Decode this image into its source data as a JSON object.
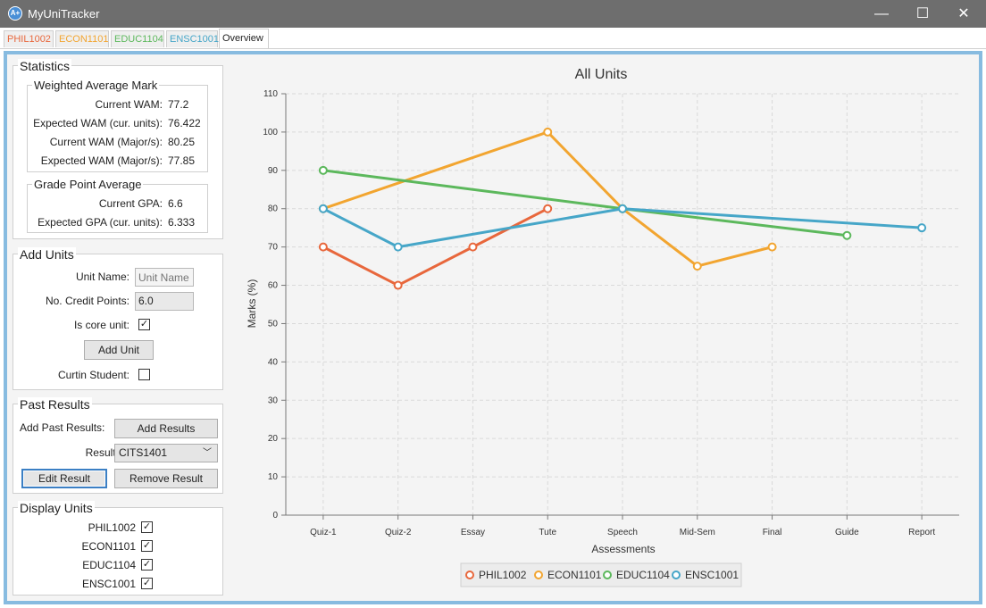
{
  "window": {
    "title": "MyUniTracker",
    "icon": "app-icon",
    "minimize": "—",
    "maximize": "☐",
    "close": "✕"
  },
  "tabs": [
    {
      "label": "PHIL1002",
      "color": "#e8673c"
    },
    {
      "label": "ECON1101",
      "color": "#f2a530"
    },
    {
      "label": "EDUC1104",
      "color": "#5cb85c"
    },
    {
      "label": "ENSC1001",
      "color": "#46a6c8"
    },
    {
      "label": "Overview",
      "color": "#222222"
    }
  ],
  "statistics": {
    "title": "Statistics",
    "wam": {
      "title": "Weighted Average Mark",
      "rows": [
        {
          "label": "Current WAM:",
          "value": "77.2"
        },
        {
          "label": "Expected WAM (cur. units):",
          "value": "76.422"
        },
        {
          "label": "Current WAM (Major/s):",
          "value": "80.25"
        },
        {
          "label": "Expected WAM (Major/s):",
          "value": "77.85"
        }
      ]
    },
    "gpa": {
      "title": "Grade Point Average",
      "rows": [
        {
          "label": "Current GPA:",
          "value": "6.6"
        },
        {
          "label": "Expected GPA (cur. units):",
          "value": "6.333"
        }
      ]
    }
  },
  "add_units": {
    "title": "Add Units",
    "unit_name_label": "Unit Name:",
    "unit_name_placeholder": "Unit Name",
    "credit_label": "No. Credit Points:",
    "credit_value": "6.0",
    "core_label": "Is core unit:",
    "core_checked": "✓",
    "add_button": "Add Unit",
    "curtin_label": "Curtin Student:",
    "curtin_checked": ""
  },
  "past_results": {
    "title": "Past Results",
    "add_label": "Add Past Results:",
    "add_button": "Add Results",
    "result_label": "Result:",
    "result_value": "CITS1401",
    "edit_button": "Edit Result",
    "remove_button": "Remove Result"
  },
  "display_units": {
    "title": "Display Units",
    "items": [
      {
        "label": "PHIL1002",
        "checked": "✓"
      },
      {
        "label": "ECON1101",
        "checked": "✓"
      },
      {
        "label": "EDUC1104",
        "checked": "✓"
      },
      {
        "label": "ENSC1001",
        "checked": "✓"
      }
    ]
  },
  "chart_data": {
    "type": "line",
    "title": "All Units",
    "xlabel": "Assessments",
    "ylabel": "Marks (%)",
    "categories": [
      "Quiz-1",
      "Quiz-2",
      "Essay",
      "Tute",
      "Speech",
      "Mid-Sem",
      "Final",
      "Guide",
      "Report"
    ],
    "ylim": [
      0,
      110
    ],
    "yticks": [
      0,
      10,
      20,
      30,
      40,
      50,
      60,
      70,
      80,
      90,
      100,
      110
    ],
    "grid": true,
    "legend": "bottom",
    "series": [
      {
        "name": "PHIL1002",
        "color": "#e8673c",
        "points": [
          [
            "Quiz-1",
            70
          ],
          [
            "Quiz-2",
            60
          ],
          [
            "Essay",
            70
          ],
          [
            "Tute",
            80
          ]
        ]
      },
      {
        "name": "ECON1101",
        "color": "#f2a530",
        "points": [
          [
            "Quiz-1",
            80
          ],
          [
            "Tute",
            100
          ],
          [
            "Speech",
            80
          ],
          [
            "Mid-Sem",
            65
          ],
          [
            "Final",
            70
          ]
        ]
      },
      {
        "name": "EDUC1104",
        "color": "#5cb85c",
        "points": [
          [
            "Quiz-1",
            90
          ],
          [
            "Speech",
            80
          ],
          [
            "Guide",
            73
          ]
        ]
      },
      {
        "name": "ENSC1001",
        "color": "#46a6c8",
        "points": [
          [
            "Quiz-1",
            80
          ],
          [
            "Quiz-2",
            70
          ],
          [
            "Speech",
            80
          ],
          [
            "Report",
            75
          ]
        ]
      }
    ]
  }
}
